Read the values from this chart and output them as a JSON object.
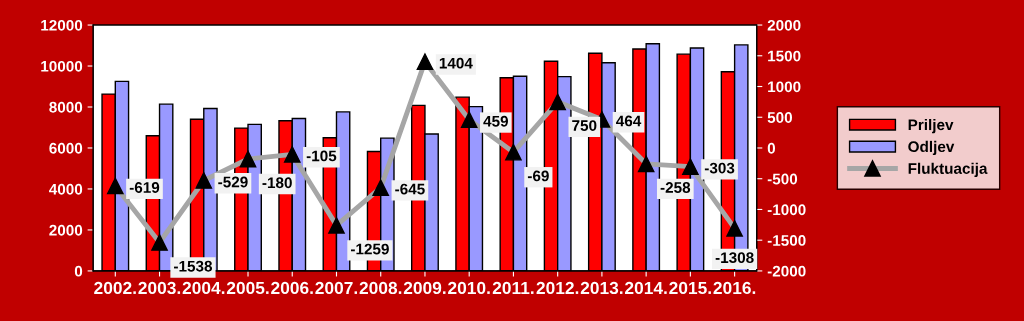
{
  "chart_data": {
    "type": "bar",
    "categories": [
      "2002.",
      "2003.",
      "2004.",
      "2005.",
      "2006.",
      "2007.",
      "2008.",
      "2009.",
      "2010.",
      "2011.",
      "2012.",
      "2013.",
      "2014.",
      "2015.",
      "2016."
    ],
    "series": [
      {
        "name": "Priljev",
        "color": "#ff0000",
        "values": [
          8630,
          6600,
          7400,
          6970,
          7330,
          6500,
          5830,
          8080,
          8480,
          9430,
          10230,
          10620,
          10830,
          10580,
          9720
        ]
      },
      {
        "name": "Odljev",
        "color": "#9999ff",
        "values": [
          9250,
          8140,
          7930,
          7150,
          7440,
          7760,
          6480,
          6680,
          8020,
          9500,
          9480,
          10160,
          11090,
          10880,
          11030
        ]
      },
      {
        "name": "Fluktuacija",
        "type": "line",
        "axis": "y2",
        "color": "#a6a6a6",
        "marker": "triangle",
        "data_labels": true,
        "values": [
          -619,
          -1538,
          -529,
          -180,
          -105,
          -1259,
          -645,
          1404,
          459,
          -69,
          750,
          464,
          -258,
          -303,
          -1308
        ]
      }
    ],
    "ylim": [
      0,
      12000
    ],
    "yticks": [
      0,
      2000,
      4000,
      6000,
      8000,
      10000,
      12000
    ],
    "y2lim": [
      -2000,
      2000
    ],
    "y2ticks": [
      -2000,
      -1500,
      -1000,
      -500,
      0,
      500,
      1000,
      1500,
      2000
    ],
    "grid": false,
    "legend": "right"
  }
}
